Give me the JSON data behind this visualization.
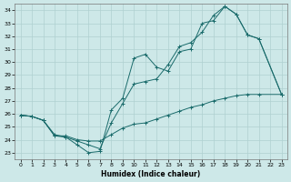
{
  "xlabel": "Humidex (Indice chaleur)",
  "xlim": [
    -0.5,
    23.5
  ],
  "ylim": [
    22.5,
    34.5
  ],
  "yticks": [
    23,
    24,
    25,
    26,
    27,
    28,
    29,
    30,
    31,
    32,
    33,
    34
  ],
  "xticks": [
    0,
    1,
    2,
    3,
    4,
    5,
    6,
    7,
    8,
    9,
    10,
    11,
    12,
    13,
    14,
    15,
    16,
    17,
    18,
    19,
    20,
    21,
    22,
    23
  ],
  "bg_color": "#cde8e8",
  "grid_color": "#afd0d0",
  "line_color": "#1a6b6b",
  "line1_x": [
    0,
    1,
    2,
    3,
    4,
    5,
    6,
    7,
    8,
    9,
    10,
    11,
    12,
    13,
    14,
    15,
    16,
    17,
    18,
    19,
    20,
    21,
    23
  ],
  "line1_y": [
    25.9,
    25.8,
    25.5,
    24.3,
    24.2,
    23.6,
    23.0,
    23.1,
    26.3,
    27.2,
    30.3,
    30.6,
    29.6,
    29.3,
    30.8,
    31.0,
    33.0,
    33.2,
    34.3,
    33.7,
    32.1,
    31.8,
    27.5
  ],
  "line2_x": [
    0,
    1,
    2,
    3,
    4,
    5,
    6,
    7,
    8,
    9,
    10,
    11,
    12,
    13,
    14,
    15,
    16,
    17,
    18,
    19,
    20,
    21,
    23
  ],
  "line2_y": [
    25.9,
    25.8,
    25.5,
    24.4,
    24.2,
    23.9,
    23.6,
    23.3,
    25.3,
    26.8,
    28.3,
    28.5,
    28.7,
    29.8,
    31.2,
    31.5,
    32.3,
    33.6,
    34.3,
    33.7,
    32.1,
    31.8,
    27.5
  ],
  "line3_x": [
    0,
    1,
    2,
    3,
    4,
    5,
    6,
    7,
    8,
    9,
    10,
    11,
    12,
    13,
    14,
    15,
    16,
    17,
    18,
    19,
    20,
    21,
    23
  ],
  "line3_y": [
    25.9,
    25.8,
    25.5,
    24.3,
    24.3,
    24.0,
    23.9,
    23.9,
    24.4,
    24.9,
    25.2,
    25.3,
    25.6,
    25.9,
    26.2,
    26.5,
    26.7,
    27.0,
    27.2,
    27.4,
    27.5,
    27.5,
    27.5
  ]
}
